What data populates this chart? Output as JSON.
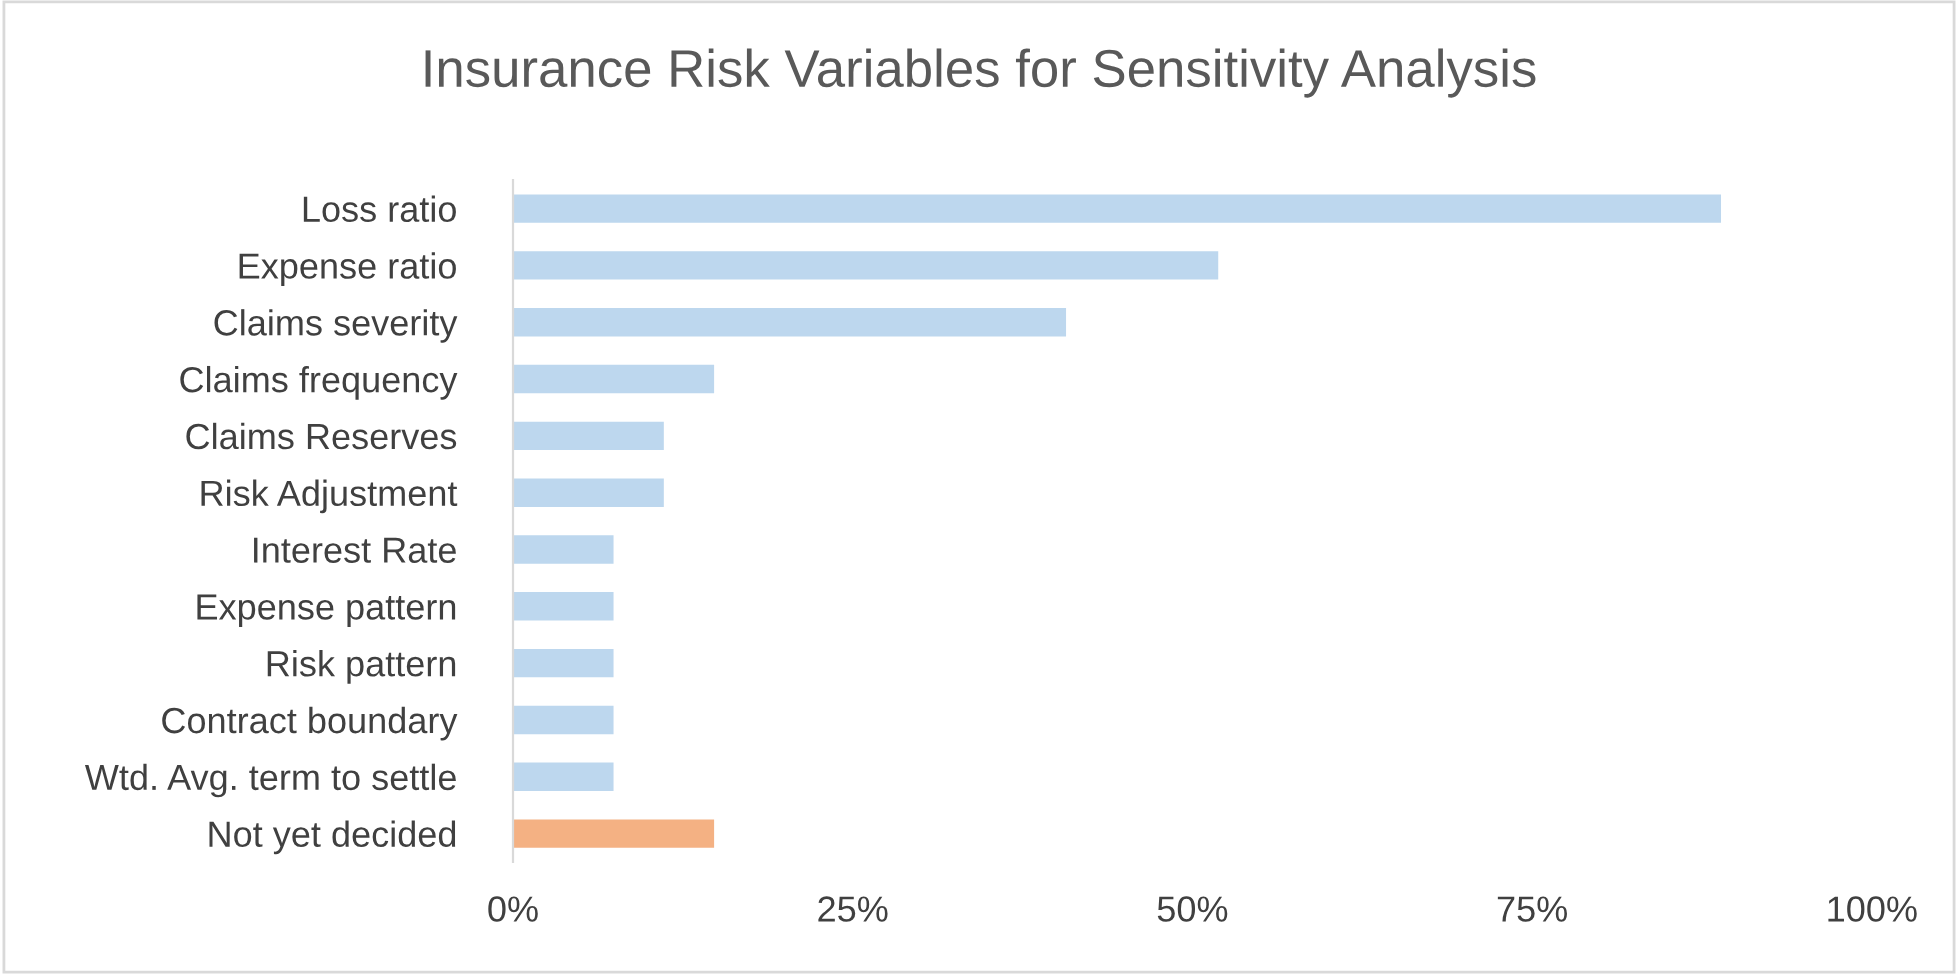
{
  "chart_data": {
    "type": "bar",
    "orientation": "horizontal",
    "title": "Insurance Risk Variables for Sensitivity Analysis",
    "categories": [
      "Loss ratio",
      "Expense ratio",
      "Claims severity",
      "Claims frequency",
      "Claims Reserves",
      "Risk Adjustment",
      "Interest Rate",
      "Expense pattern",
      "Risk pattern",
      "Contract boundary",
      "Wtd. Avg. term to settle",
      "Not yet decided"
    ],
    "values": [
      88.9,
      51.9,
      40.7,
      14.8,
      11.1,
      11.1,
      7.4,
      7.4,
      7.4,
      7.4,
      7.4,
      14.8
    ],
    "colors": [
      "#bdd7ee",
      "#bdd7ee",
      "#bdd7ee",
      "#bdd7ee",
      "#bdd7ee",
      "#bdd7ee",
      "#bdd7ee",
      "#bdd7ee",
      "#bdd7ee",
      "#bdd7ee",
      "#bdd7ee",
      "#f4b183"
    ],
    "xlim": [
      0,
      100
    ],
    "xticks": [
      {
        "value": 0,
        "label": "0%"
      },
      {
        "value": 25,
        "label": "25%"
      },
      {
        "value": 50,
        "label": "50%"
      },
      {
        "value": 75,
        "label": "75%"
      },
      {
        "value": 100,
        "label": "100%"
      }
    ],
    "grid": false,
    "legend": false
  }
}
